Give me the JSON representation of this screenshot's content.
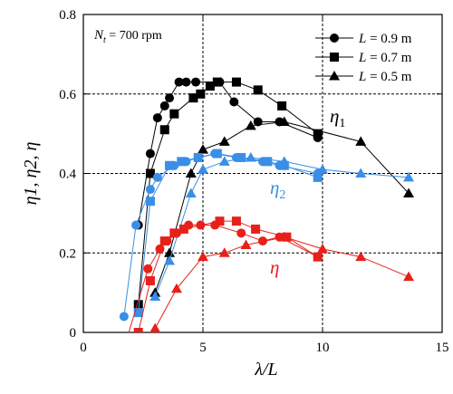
{
  "chart_data": {
    "type": "line",
    "xlabel": "λ/L",
    "ylabel": "η1, η2, η",
    "xlim": [
      0,
      15
    ],
    "ylim": [
      0,
      0.8
    ],
    "xticks": [
      0,
      5,
      10,
      15
    ],
    "yticks": [
      0,
      0.2,
      0.4,
      0.6,
      0.8
    ],
    "ytick_labels": [
      "0",
      "0.2",
      "0.4",
      "0.6",
      "0.8"
    ],
    "grid": "dashed at x=5, x=10 and y=0.2, 0.4, 0.6",
    "annotation": {
      "prefix": "N",
      "subscript": "t",
      "suffix": " = 700 rpm"
    },
    "legend": {
      "placement": "top-right",
      "entries": [
        {
          "marker": "circle",
          "prefix": "L",
          "text": " = 0.9 m"
        },
        {
          "marker": "square",
          "prefix": "L",
          "text": " = 0.7 m"
        },
        {
          "marker": "triangle",
          "prefix": "L",
          "text": " = 0.5 m"
        }
      ]
    },
    "group_labels": [
      {
        "base": "η",
        "sub": "1",
        "color": "#000000"
      },
      {
        "base": "η",
        "sub": "2",
        "color": "#3a8ee6"
      },
      {
        "base": "η",
        "sub": "",
        "color": "#e8201a"
      }
    ],
    "colors": {
      "eta1": "#000000",
      "eta2": "#3a8ee6",
      "eta": "#e8201a"
    },
    "series": [
      {
        "group": "eta1",
        "marker": "circle",
        "points": [
          [
            2.3,
            0.27
          ],
          [
            2.8,
            0.45
          ],
          [
            3.1,
            0.54
          ],
          [
            3.4,
            0.57
          ],
          [
            3.6,
            0.59
          ],
          [
            4.0,
            0.63
          ],
          [
            4.3,
            0.63
          ],
          [
            4.7,
            0.63
          ],
          [
            5.7,
            0.63
          ],
          [
            6.3,
            0.58
          ],
          [
            7.3,
            0.53
          ],
          [
            8.2,
            0.53
          ],
          [
            9.8,
            0.49
          ]
        ]
      },
      {
        "group": "eta1",
        "marker": "square",
        "points": [
          [
            2.3,
            0.07
          ],
          [
            2.8,
            0.4
          ],
          [
            3.4,
            0.51
          ],
          [
            3.8,
            0.55
          ],
          [
            4.6,
            0.59
          ],
          [
            4.9,
            0.6
          ],
          [
            5.3,
            0.62
          ],
          [
            5.6,
            0.63
          ],
          [
            6.4,
            0.63
          ],
          [
            7.3,
            0.61
          ],
          [
            8.3,
            0.57
          ],
          [
            9.8,
            0.5
          ]
        ]
      },
      {
        "group": "eta1",
        "marker": "triangle",
        "points": [
          [
            3.0,
            0.1
          ],
          [
            3.6,
            0.2
          ],
          [
            4.5,
            0.4
          ],
          [
            5.0,
            0.46
          ],
          [
            5.9,
            0.48
          ],
          [
            7.0,
            0.52
          ],
          [
            8.4,
            0.53
          ],
          [
            11.6,
            0.48
          ],
          [
            13.6,
            0.35
          ]
        ]
      },
      {
        "group": "eta2",
        "marker": "circle",
        "points": [
          [
            1.7,
            0.04
          ],
          [
            2.2,
            0.27
          ],
          [
            2.8,
            0.36
          ],
          [
            3.1,
            0.39
          ],
          [
            3.8,
            0.42
          ],
          [
            4.3,
            0.43
          ],
          [
            4.8,
            0.44
          ],
          [
            5.5,
            0.45
          ],
          [
            6.4,
            0.44
          ],
          [
            7.5,
            0.43
          ],
          [
            8.2,
            0.42
          ],
          [
            9.8,
            0.4
          ]
        ]
      },
      {
        "group": "eta2",
        "marker": "square",
        "points": [
          [
            2.3,
            0.05
          ],
          [
            2.8,
            0.33
          ],
          [
            3.6,
            0.42
          ],
          [
            4.1,
            0.43
          ],
          [
            4.8,
            0.44
          ],
          [
            5.6,
            0.45
          ],
          [
            6.6,
            0.44
          ],
          [
            7.7,
            0.43
          ],
          [
            8.4,
            0.42
          ],
          [
            9.8,
            0.39
          ]
        ]
      },
      {
        "group": "eta2",
        "marker": "triangle",
        "points": [
          [
            3.0,
            0.09
          ],
          [
            3.6,
            0.18
          ],
          [
            4.5,
            0.35
          ],
          [
            5.0,
            0.41
          ],
          [
            5.9,
            0.43
          ],
          [
            7.0,
            0.44
          ],
          [
            8.4,
            0.43
          ],
          [
            10.0,
            0.41
          ],
          [
            11.6,
            0.4
          ],
          [
            13.6,
            0.39
          ]
        ]
      },
      {
        "group": "eta",
        "marker": "circle",
        "points": [
          [
            1.8,
            -0.02
          ],
          [
            2.7,
            0.16
          ],
          [
            3.2,
            0.21
          ],
          [
            3.5,
            0.23
          ],
          [
            3.9,
            0.25
          ],
          [
            4.4,
            0.27
          ],
          [
            4.9,
            0.27
          ],
          [
            5.5,
            0.27
          ],
          [
            6.6,
            0.25
          ],
          [
            7.5,
            0.23
          ],
          [
            8.2,
            0.24
          ],
          [
            9.8,
            0.19
          ]
        ]
      },
      {
        "group": "eta",
        "marker": "square",
        "points": [
          [
            2.3,
            0.0
          ],
          [
            2.8,
            0.13
          ],
          [
            3.4,
            0.23
          ],
          [
            3.8,
            0.25
          ],
          [
            4.2,
            0.26
          ],
          [
            5.7,
            0.28
          ],
          [
            6.4,
            0.28
          ],
          [
            7.2,
            0.26
          ],
          [
            8.5,
            0.24
          ],
          [
            9.8,
            0.19
          ]
        ]
      },
      {
        "group": "eta",
        "marker": "triangle",
        "points": [
          [
            3.0,
            0.01
          ],
          [
            3.9,
            0.11
          ],
          [
            5.0,
            0.19
          ],
          [
            5.9,
            0.2
          ],
          [
            6.8,
            0.22
          ],
          [
            8.4,
            0.24
          ],
          [
            10.0,
            0.21
          ],
          [
            11.6,
            0.19
          ],
          [
            13.6,
            0.14
          ]
        ]
      }
    ]
  }
}
